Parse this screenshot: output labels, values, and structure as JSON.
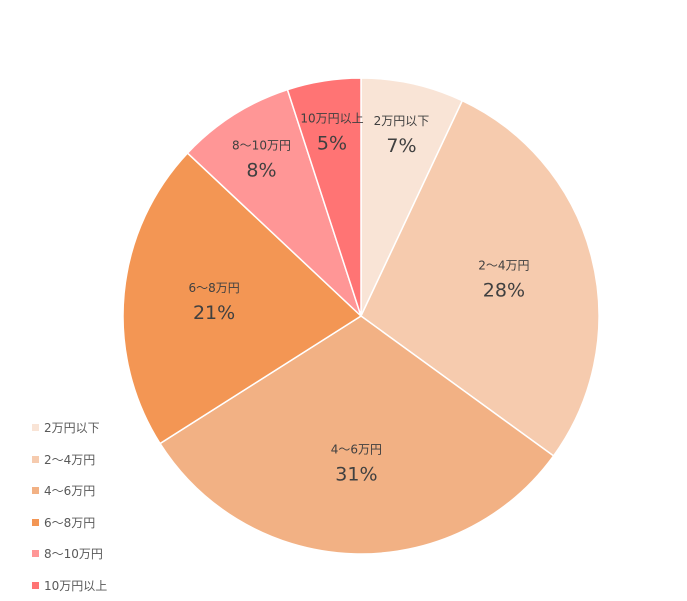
{
  "chart_data": {
    "type": "pie",
    "categories": [
      "2万円以下",
      "2～4万円",
      "4～6万円",
      "6～8万円",
      "8～10万円",
      "10万円以上"
    ],
    "values": [
      7,
      28,
      31,
      21,
      8,
      5
    ],
    "value_labels": [
      "7%",
      "28%",
      "31%",
      "21%",
      "8%",
      "5%"
    ],
    "colors": [
      "#F9E4D6",
      "#F6CBAE",
      "#F2B184",
      "#F39654",
      "#FF9696",
      "#FF7474"
    ],
    "start_angle_deg": 0,
    "direction": "clockwise",
    "legend_position": "bottom-left"
  }
}
